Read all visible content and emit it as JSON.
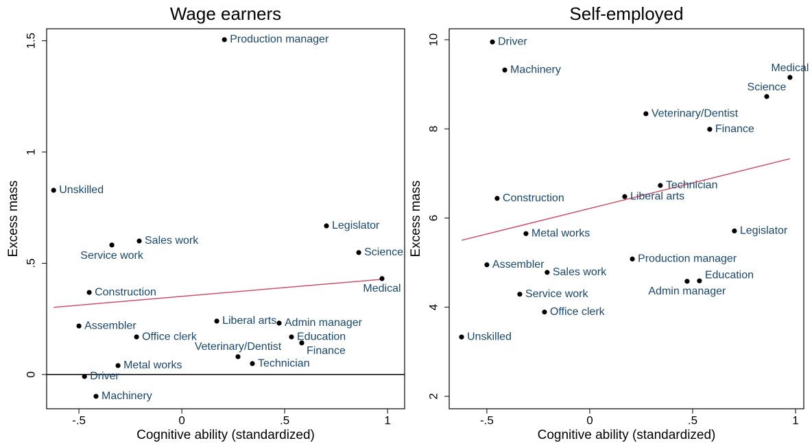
{
  "chart_data": [
    {
      "type": "scatter",
      "title": "Wage earners",
      "x_label": "Cognitive ability (standardized)",
      "y_label": "Excess mass",
      "labels": [
        "Production manager",
        "Unskilled",
        "Legislator",
        "Sales work",
        "Service work",
        "Science",
        "Medical",
        "Construction",
        "Assembler",
        "Liberal arts",
        "Admin manager",
        "Office clerk",
        "Education",
        "Finance",
        "Veterinary/Dentist",
        "Technician",
        "Metal works",
        "Driver",
        "Machinery"
      ],
      "x": [
        0.207,
        -0.623,
        0.703,
        -0.207,
        -0.34,
        0.86,
        0.973,
        -0.45,
        -0.5,
        0.17,
        0.473,
        -0.22,
        0.533,
        0.583,
        0.273,
        0.343,
        -0.31,
        -0.473,
        -0.417
      ],
      "y": [
        1.505,
        0.828,
        0.668,
        0.6,
        0.582,
        0.548,
        0.431,
        0.369,
        0.218,
        0.24,
        0.231,
        0.169,
        0.169,
        0.142,
        0.08,
        0.049,
        0.04,
        -0.009,
        -0.098
      ],
      "fit": {
        "x": [
          -0.623,
          0.973
        ],
        "y": [
          0.302,
          0.428
        ]
      },
      "hline": 0,
      "point_color": "#000000",
      "label_color": "#1a476f",
      "fit_color": "#c8506c",
      "xlim": [
        -0.657,
        1.083
      ],
      "ylim": [
        -0.154,
        1.554
      ],
      "xticks": [
        {
          "value": -0.5,
          "label": "-.5"
        },
        0,
        {
          "value": 0.5,
          "label": ".5"
        },
        1
      ],
      "yticks": [
        0,
        {
          "value": 0.5,
          "label": ".5"
        },
        1,
        1.5
      ]
    },
    {
      "type": "scatter",
      "title": "Self-employed",
      "x_label": "Cognitive ability (standardized)",
      "y_label": "Excess mass",
      "labels": [
        "Driver",
        "Machinery",
        "Medical",
        "Science",
        "Veterinary/Dentist",
        "Finance",
        "Technician",
        "Liberal arts",
        "Construction",
        "Legislator",
        "Metal works",
        "Production manager",
        "Assembler",
        "Sales work",
        "Education",
        "Admin manager",
        "Service work",
        "Office clerk",
        "Unskilled"
      ],
      "x": [
        -0.473,
        -0.413,
        0.973,
        0.86,
        0.273,
        0.583,
        0.343,
        0.17,
        -0.45,
        0.703,
        -0.31,
        0.207,
        -0.5,
        -0.207,
        0.533,
        0.473,
        -0.34,
        -0.22,
        -0.623
      ],
      "y": [
        9.95,
        9.32,
        9.155,
        8.725,
        8.34,
        7.99,
        6.73,
        6.48,
        6.44,
        5.71,
        5.65,
        5.08,
        4.95,
        4.78,
        4.59,
        4.58,
        4.29,
        3.89,
        3.33
      ],
      "fit": {
        "x": [
          -0.623,
          0.973
        ],
        "y": [
          5.5,
          7.33
        ]
      },
      "point_color": "#000000",
      "label_color": "#1a476f",
      "fit_color": "#c8506c",
      "xlim": [
        -0.683,
        1.04
      ],
      "ylim": [
        1.72,
        10.246
      ],
      "xticks": [
        {
          "value": -0.5,
          "label": "-.5"
        },
        0,
        {
          "value": 0.5,
          "label": ".5"
        },
        1
      ],
      "yticks": [
        2,
        4,
        6,
        8,
        10
      ]
    }
  ]
}
